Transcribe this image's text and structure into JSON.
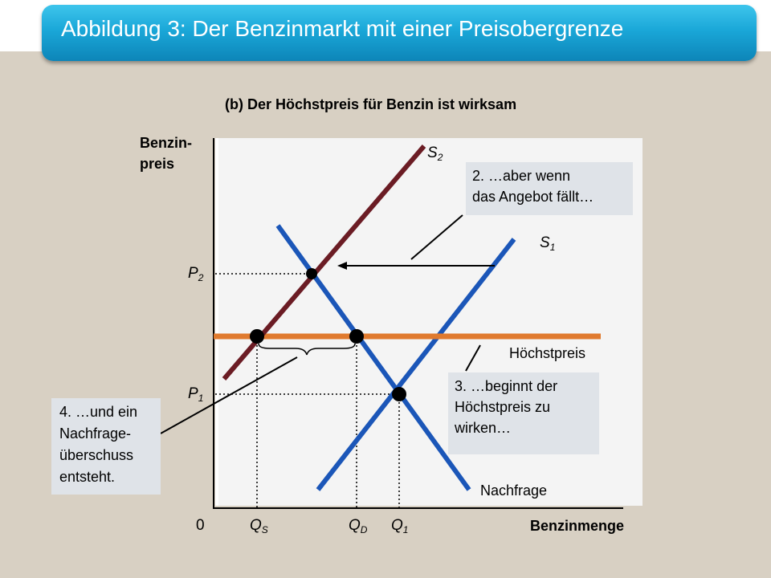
{
  "slide": {
    "title": "Abbildung 3: Der Benzinmarkt mit einer Preisobergrenze",
    "subtitle": "(b) Der Höchstpreis für Benzin ist wirksam"
  },
  "axes": {
    "y_label_line1": "Benzin-",
    "y_label_line2": "preis",
    "x_label": "Benzinmenge",
    "origin": "0"
  },
  "ticks": {
    "P2": {
      "letter": "P",
      "sub": "2"
    },
    "P1": {
      "letter": "P",
      "sub": "1"
    },
    "QS": {
      "letter": "Q",
      "sub": "S"
    },
    "QD": {
      "letter": "Q",
      "sub": "D"
    },
    "Q1": {
      "letter": "Q",
      "sub": "1"
    }
  },
  "curves": {
    "S2": {
      "letter": "S",
      "sub": "2",
      "color": "#6b1c24"
    },
    "S1": {
      "letter": "S",
      "sub": "1",
      "color": "#1b56b8"
    },
    "demand": {
      "label": "Nachfrage",
      "color": "#1b56b8"
    },
    "ceiling": {
      "label": "Höchstpreis",
      "color": "#e07a2e"
    }
  },
  "callouts": {
    "c2_line1": "2. …aber wenn",
    "c2_line2": "das Angebot fällt…",
    "c3_line1": "3. …beginnt der",
    "c3_line2": "Höchstpreis zu",
    "c3_line3": "wirken…",
    "c4_line1": "4. …und ein",
    "c4_line2": "Nachfrage-",
    "c4_line3": "überschuss",
    "c4_line4": "entsteht."
  }
}
